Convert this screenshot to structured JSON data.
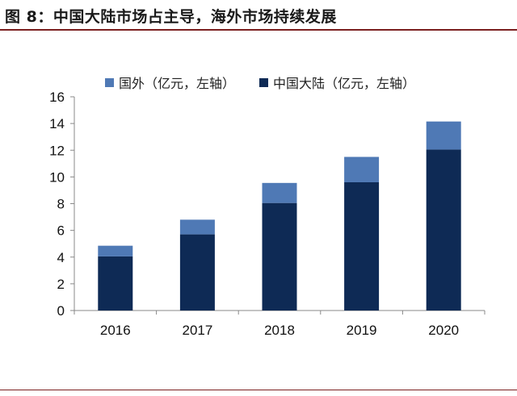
{
  "figure": {
    "title": "图 8：中国大陆市场占主导，海外市场持续发展"
  },
  "colors": {
    "overseas": "#4f79b5",
    "mainland": "#0e2a55",
    "axis": "#888888",
    "rule": "#7a1f1f"
  },
  "chart_data": {
    "type": "bar",
    "stacked": true,
    "categories": [
      "2016",
      "2017",
      "2018",
      "2019",
      "2020"
    ],
    "series": [
      {
        "name": "中国大陆（亿元，左轴）",
        "values": [
          4.05,
          5.7,
          8.05,
          9.6,
          12.05
        ]
      },
      {
        "name": "国外（亿元，左轴）",
        "values": [
          0.8,
          1.1,
          1.5,
          1.9,
          2.1
        ]
      }
    ],
    "ylim": [
      0,
      16
    ],
    "yticks": [
      0,
      2,
      4,
      6,
      8,
      10,
      12,
      14,
      16
    ],
    "legend_position": "top",
    "grid": false
  }
}
